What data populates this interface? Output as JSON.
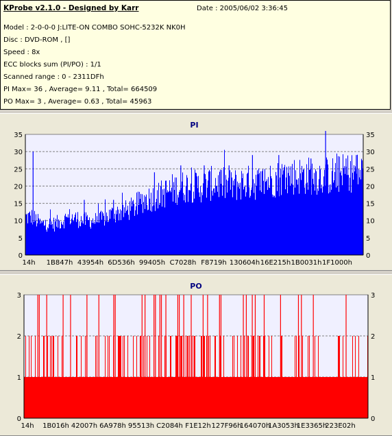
{
  "info": {
    "title": "KProbe v2.1.0 - Designed by Karr",
    "date": "Date : 2005/06/02 3:36:45",
    "model": "Model : 2-0-0-0 J:LITE-ON COMBO SOHC-5232K NK0H",
    "disc": "Disc : DVD-ROM ,  []",
    "speed": "Speed : 8x",
    "ecc": "ECC blocks sum (PI/PO) : 1/1",
    "range": "Scanned range : 0 - 2311DFh",
    "pi": "PI Max= 36 , Average= 9.11 , Total= 664509",
    "po": "PO Max= 3 , Average= 0.63 , Total= 45963"
  },
  "chart_data": [
    {
      "type": "bar",
      "title": "PI",
      "color": "#0000ff",
      "ylim": [
        0,
        35
      ],
      "yticks": [
        0,
        5,
        10,
        15,
        20,
        25,
        30,
        35
      ],
      "xticks": [
        "14h",
        "1B847h",
        "43954h",
        "6D536h",
        "99405h",
        "C7028h",
        "F8719h",
        "130604h",
        "16E215h",
        "1B0031h",
        "1F1000h"
      ],
      "xrange": [
        0,
        2311
      ],
      "profile": [
        [
          0,
          11
        ],
        [
          5,
          11
        ],
        [
          10,
          9
        ],
        [
          20,
          9
        ],
        [
          30,
          11
        ],
        [
          40,
          10
        ],
        [
          50,
          10
        ],
        [
          60,
          12
        ],
        [
          70,
          13
        ],
        [
          75,
          14
        ],
        [
          80,
          16
        ],
        [
          90,
          17
        ],
        [
          100,
          19
        ],
        [
          110,
          20
        ],
        [
          120,
          20
        ],
        [
          130,
          21
        ],
        [
          140,
          20
        ],
        [
          150,
          21
        ],
        [
          160,
          21
        ],
        [
          170,
          22
        ],
        [
          180,
          23
        ],
        [
          190,
          23
        ],
        [
          200,
          23
        ],
        [
          210,
          23
        ],
        [
          221,
          24
        ],
        [
          231,
          24
        ]
      ],
      "spikes": [
        [
          5,
          30
        ],
        [
          9.5,
          10
        ],
        [
          40,
          16
        ],
        [
          60,
          16
        ],
        [
          88,
          24
        ],
        [
          106,
          26
        ],
        [
          122,
          26
        ],
        [
          139,
          26
        ],
        [
          155,
          29
        ],
        [
          173,
          29
        ],
        [
          195,
          28
        ],
        [
          205,
          36
        ],
        [
          219,
          28
        ],
        [
          226,
          29
        ]
      ],
      "grid": true
    },
    {
      "type": "bar",
      "title": "PO",
      "color": "#ff0000",
      "ylim": [
        0,
        3
      ],
      "yticks": [
        0,
        1,
        2,
        3
      ],
      "xticks": [
        "14h",
        "1B016h",
        "42007h",
        "6A978h",
        "95513h",
        "C2084h",
        "F1E12h",
        "127F96h",
        "164070h",
        "1A3053h",
        "1E3365h",
        "223E02h"
      ],
      "xrange": [
        0,
        2311
      ],
      "baseline": 1,
      "spikes3": [
        9,
        10,
        15,
        26,
        31,
        42,
        50,
        60,
        61,
        79,
        81,
        87,
        88,
        91,
        92,
        95,
        103,
        104,
        107,
        112,
        120,
        123,
        131,
        132,
        147,
        149,
        153,
        155,
        161,
        172,
        184,
        186,
        194,
        216
      ],
      "grid": true
    }
  ]
}
